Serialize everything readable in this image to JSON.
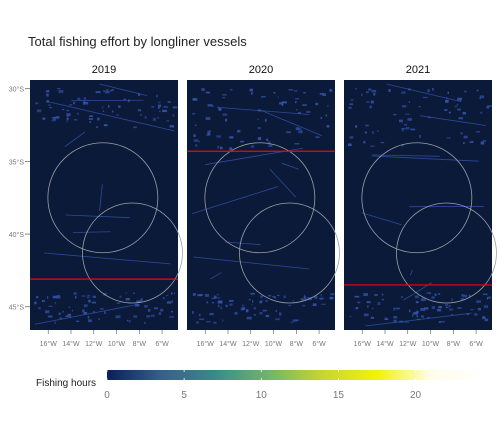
{
  "title": "Total fishing effort by longliner vessels",
  "panels": [
    {
      "label": "2019",
      "line_lat": -43.1
    },
    {
      "label": "2020",
      "line_lat": -34.3
    },
    {
      "label": "2021",
      "line_lat": -43.5
    }
  ],
  "map": {
    "lon_ticks": [
      "16°W",
      "14°W",
      "12°W",
      "10°W",
      "8°W",
      "6°W"
    ],
    "lat_ticks": [
      "30°S",
      "35°S",
      "40°S",
      "45°S"
    ],
    "background": "#0c1a3a",
    "track_color": "#3355b0",
    "boundary_color": "#9aa0a8",
    "line_color": "#ff0000"
  },
  "legend": {
    "title": "Fishing hours",
    "ticks": [
      "0",
      "5",
      "10",
      "15",
      "20"
    ],
    "colors": [
      "#0a1e5e",
      "#35608d",
      "#3a8a8a",
      "#6fb66a",
      "#c8d62e",
      "#f2f20a",
      "#fffde8",
      "#ffffff"
    ]
  }
}
